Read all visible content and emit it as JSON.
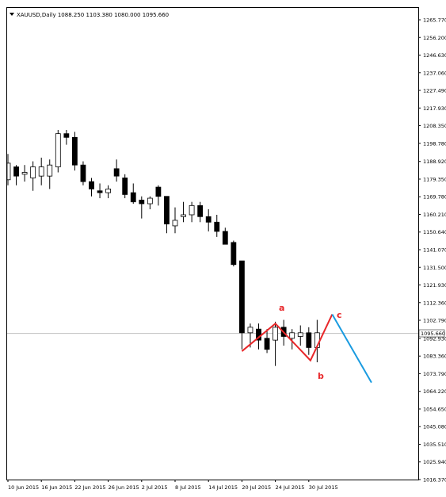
{
  "header": {
    "symbol_line": "XAUUSD,Daily  1088.250 1103.380 1080.000 1095.660"
  },
  "current_price_label": "1095.660",
  "colors": {
    "bull_candle": "#ffffff",
    "bear_candle": "#000000",
    "wave_red": "#e8272a",
    "wave_blue": "#1a9be0",
    "current_line": "#c0c0c0"
  },
  "wave_labels": [
    "a",
    "b",
    "c"
  ],
  "chart_data": {
    "type": "candlestick",
    "title": "XAUUSD,Daily",
    "y_ticks": [
      "1265.770",
      "1256.200",
      "1246.630",
      "1237.060",
      "1227.490",
      "1217.930",
      "1208.350",
      "1198.780",
      "1188.920",
      "1179.350",
      "1169.780",
      "1160.210",
      "1150.640",
      "1141.070",
      "1131.500",
      "1121.930",
      "1112.360",
      "1102.790",
      "1092.930",
      "1083.360",
      "1073.790",
      "1064.220",
      "1054.650",
      "1045.080",
      "1035.510",
      "1025.940",
      "1016.370"
    ],
    "ylim": [
      1014,
      1270
    ],
    "x_ticks": [
      "10 Jun 2015",
      "16 Jun 2015",
      "22 Jun 2015",
      "26 Jun 2015",
      "2 Jul 2015",
      "8 Jul 2015",
      "14 Jul 2015",
      "20 Jul 2015",
      "24 Jul 2015",
      "30 Jul 2015"
    ],
    "candles": [
      {
        "o": 1179,
        "h": 1193,
        "l": 1176,
        "c": 1188
      },
      {
        "o": 1186,
        "h": 1187,
        "l": 1176,
        "c": 1181
      },
      {
        "o": 1182,
        "h": 1187,
        "l": 1178,
        "c": 1183
      },
      {
        "o": 1180,
        "h": 1189,
        "l": 1173,
        "c": 1186
      },
      {
        "o": 1181,
        "h": 1191,
        "l": 1176,
        "c": 1186
      },
      {
        "o": 1181,
        "h": 1190,
        "l": 1174,
        "c": 1187
      },
      {
        "o": 1186,
        "h": 1206,
        "l": 1183,
        "c": 1204
      },
      {
        "o": 1204,
        "h": 1206,
        "l": 1198,
        "c": 1202
      },
      {
        "o": 1202,
        "h": 1205,
        "l": 1184,
        "c": 1187
      },
      {
        "o": 1187,
        "h": 1189,
        "l": 1176,
        "c": 1178
      },
      {
        "o": 1178,
        "h": 1180,
        "l": 1170,
        "c": 1174
      },
      {
        "o": 1173,
        "h": 1177,
        "l": 1169,
        "c": 1172
      },
      {
        "o": 1172,
        "h": 1176,
        "l": 1169,
        "c": 1174
      },
      {
        "o": 1185,
        "h": 1190,
        "l": 1178,
        "c": 1181
      },
      {
        "o": 1180,
        "h": 1182,
        "l": 1169,
        "c": 1171
      },
      {
        "o": 1172,
        "h": 1177,
        "l": 1166,
        "c": 1167
      },
      {
        "o": 1168,
        "h": 1170,
        "l": 1158,
        "c": 1166
      },
      {
        "o": 1166,
        "h": 1170,
        "l": 1163,
        "c": 1169
      },
      {
        "o": 1175,
        "h": 1176,
        "l": 1165,
        "c": 1170
      },
      {
        "o": 1170,
        "h": 1170,
        "l": 1150,
        "c": 1155
      },
      {
        "o": 1154,
        "h": 1164,
        "l": 1150,
        "c": 1157
      },
      {
        "o": 1159,
        "h": 1167,
        "l": 1156,
        "c": 1160
      },
      {
        "o": 1160,
        "h": 1167,
        "l": 1156,
        "c": 1165
      },
      {
        "o": 1165,
        "h": 1167,
        "l": 1156,
        "c": 1159
      },
      {
        "o": 1159,
        "h": 1163,
        "l": 1151,
        "c": 1156
      },
      {
        "o": 1156,
        "h": 1160,
        "l": 1148,
        "c": 1151
      },
      {
        "o": 1151,
        "h": 1153,
        "l": 1144,
        "c": 1144
      },
      {
        "o": 1145,
        "h": 1146,
        "l": 1132,
        "c": 1133
      },
      {
        "o": 1135,
        "h": 1135,
        "l": 1087,
        "c": 1096
      },
      {
        "o": 1096,
        "h": 1101,
        "l": 1088,
        "c": 1099
      },
      {
        "o": 1098,
        "h": 1101,
        "l": 1087,
        "c": 1092
      },
      {
        "o": 1093,
        "h": 1098,
        "l": 1085,
        "c": 1087
      },
      {
        "o": 1092,
        "h": 1102,
        "l": 1078,
        "c": 1099
      },
      {
        "o": 1099,
        "h": 1103,
        "l": 1089,
        "c": 1094
      },
      {
        "o": 1093,
        "h": 1098,
        "l": 1087,
        "c": 1096
      },
      {
        "o": 1094,
        "h": 1100,
        "l": 1089,
        "c": 1096
      },
      {
        "o": 1096,
        "h": 1099,
        "l": 1084,
        "c": 1088
      },
      {
        "o": 1088,
        "h": 1103,
        "l": 1080,
        "c": 1096
      }
    ],
    "wave_red": [
      {
        "i": 28.0,
        "p": 1086
      },
      {
        "i": 32.0,
        "p": 1101
      },
      {
        "i": 36.2,
        "p": 1081
      },
      {
        "i": 38.8,
        "p": 1106
      }
    ],
    "wave_blue": [
      {
        "i": 38.8,
        "p": 1106
      },
      {
        "i": 43.5,
        "p": 1069
      }
    ],
    "current_price": 1095.66
  }
}
